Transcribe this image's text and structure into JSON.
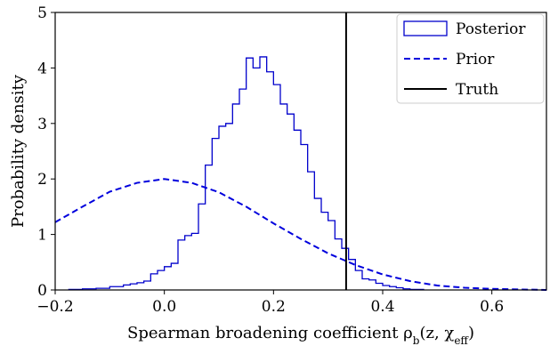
{
  "chart_data": {
    "type": "histogram",
    "xlabel": "Spearman broadening coefficient ρ",
    "xlabel_sub": "b",
    "xlabel_args": "(z, χ",
    "xlabel_args_sub": "eff",
    "xlabel_close": ")",
    "ylabel": "Probability density",
    "xlim": [
      -0.2,
      0.7
    ],
    "ylim": [
      0,
      5
    ],
    "xticks": [
      -0.2,
      0.0,
      0.2,
      0.4,
      0.6
    ],
    "xtick_labels": [
      "−0.2",
      "0.0",
      "0.2",
      "0.4",
      "0.6"
    ],
    "yticks": [
      0,
      1,
      2,
      3,
      4,
      5
    ],
    "ytick_labels": [
      "0",
      "1",
      "2",
      "3",
      "4",
      "5"
    ],
    "legend_position": "top-right",
    "colors": {
      "posterior": "#0000cc",
      "prior": "#0000dd",
      "truth": "#000000"
    },
    "series": [
      {
        "name": "Posterior",
        "kind": "step-histogram",
        "bin_start": -0.175,
        "bin_width": 0.0125,
        "values": [
          0.01,
          0.01,
          0.02,
          0.02,
          0.03,
          0.03,
          0.06,
          0.06,
          0.09,
          0.11,
          0.13,
          0.16,
          0.29,
          0.35,
          0.42,
          0.48,
          0.9,
          0.98,
          1.02,
          1.55,
          2.25,
          2.73,
          2.95,
          3.0,
          3.35,
          3.62,
          4.18,
          4.0,
          4.2,
          3.93,
          3.7,
          3.35,
          3.17,
          2.88,
          2.62,
          2.13,
          1.65,
          1.4,
          1.25,
          0.92,
          0.75,
          0.55,
          0.35,
          0.2,
          0.18,
          0.12,
          0.08,
          0.06,
          0.04,
          0.02,
          0.01,
          0.01
        ]
      },
      {
        "name": "Prior",
        "kind": "line",
        "x": [
          -0.2,
          -0.15,
          -0.1,
          -0.05,
          0.0,
          0.05,
          0.1,
          0.15,
          0.2,
          0.25,
          0.3,
          0.35,
          0.4,
          0.45,
          0.5,
          0.55,
          0.6,
          0.65,
          0.7
        ],
        "y": [
          1.22,
          1.5,
          1.77,
          1.93,
          2.0,
          1.93,
          1.76,
          1.5,
          1.2,
          0.92,
          0.66,
          0.45,
          0.28,
          0.16,
          0.08,
          0.04,
          0.02,
          0.01,
          0.0
        ]
      },
      {
        "name": "Truth",
        "kind": "vline",
        "x": 0.333
      }
    ]
  }
}
